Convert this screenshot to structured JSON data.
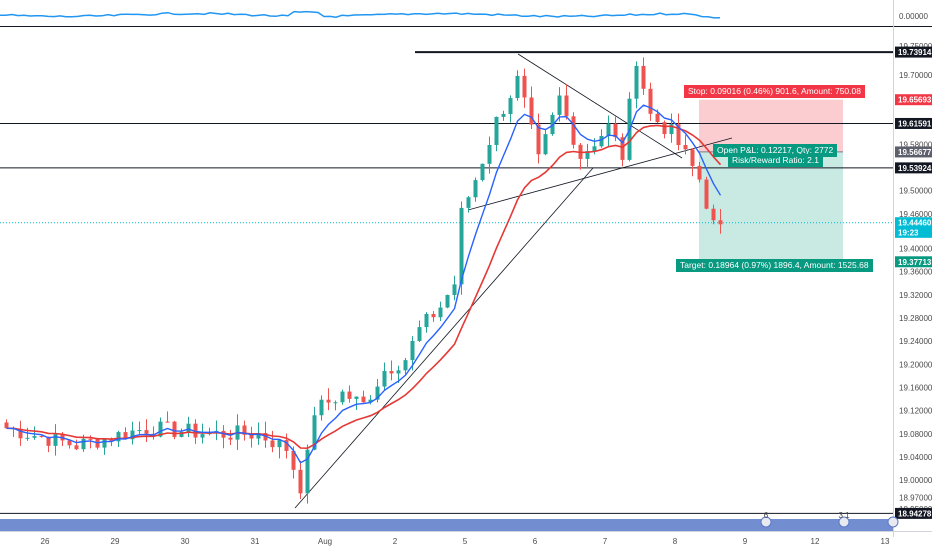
{
  "chart_data": {
    "type": "candlestick",
    "symbol_pane": {
      "price_ticks": [
        "19.75000",
        "19.70000",
        "19.66000",
        "19.62000",
        "19.58000",
        "19.54000",
        "19.50000",
        "19.46000",
        "19.40000",
        "19.36000",
        "19.32000",
        "19.28000",
        "19.24000",
        "19.20000",
        "19.16000",
        "19.12000",
        "19.08000",
        "19.04000",
        "19.00000",
        "18.97000",
        "18.95000"
      ],
      "price_tick_values": [
        19.75,
        19.7,
        19.66,
        19.62,
        19.58,
        19.54,
        19.5,
        19.46,
        19.4,
        19.36,
        19.32,
        19.28,
        19.24,
        19.2,
        19.16,
        19.12,
        19.08,
        19.04,
        19.0,
        18.97,
        18.95
      ],
      "ylim": [
        18.94,
        19.76
      ],
      "x_ticks": [
        "26",
        "29",
        "30",
        "31",
        "Aug",
        "2",
        "5",
        "6",
        "7",
        "8",
        "9",
        "12",
        "13"
      ],
      "x_tick_bars": [
        6,
        16,
        26,
        36,
        46,
        56,
        66,
        76,
        86,
        96,
        106,
        116,
        126
      ],
      "bars_visible": 118,
      "grid": false,
      "moving_averages": [
        {
          "color": "#2962ff",
          "period": "fast"
        },
        {
          "color": "#e53935",
          "period": "slow"
        }
      ]
    },
    "price_labels": [
      {
        "text": "19.73914",
        "bg": "#131722",
        "value": 19.73914
      },
      {
        "text": "19.65693",
        "bg": "#f23645",
        "value": 19.65693
      },
      {
        "text": "19.61591",
        "bg": "#131722",
        "value": 19.61591
      },
      {
        "text": "19.56677",
        "bg": "#5d606b",
        "value": 19.56677
      },
      {
        "text": "19.53924",
        "bg": "#131722",
        "value": 19.53924
      },
      {
        "text": "19.44460",
        "bg": "#00bcd4",
        "value": 19.4446
      },
      {
        "text": "19:23",
        "bg": "#00bcd4",
        "value": 19.428
      },
      {
        "text": "19.37713",
        "bg": "#089981",
        "value": 19.37713
      },
      {
        "text": "18.94278",
        "bg": "#131722",
        "value": 18.94278
      }
    ],
    "horizontal_lines": [
      19.73914,
      19.61591,
      19.53924,
      18.94278
    ],
    "current_price": 19.4446,
    "indicator_pane": {
      "tick_label": "0.00000",
      "line_color": "#2196f3"
    },
    "position": {
      "stop_label": "Stop: 0.09016 (0.46%) 901.6, Amount: 750.08",
      "pnl_label": "Open P&L: 0.12217, Qty: 2772",
      "rr_label": "Risk/Reward Ratio: 2.1",
      "target_label": "Target: 0.18964 (0.97%) 1896.4, Amount: 1525.68",
      "entry": 19.56677,
      "stop": 19.65693,
      "target": 19.37713
    },
    "timeline_markers": [
      "6",
      "3 1"
    ]
  }
}
